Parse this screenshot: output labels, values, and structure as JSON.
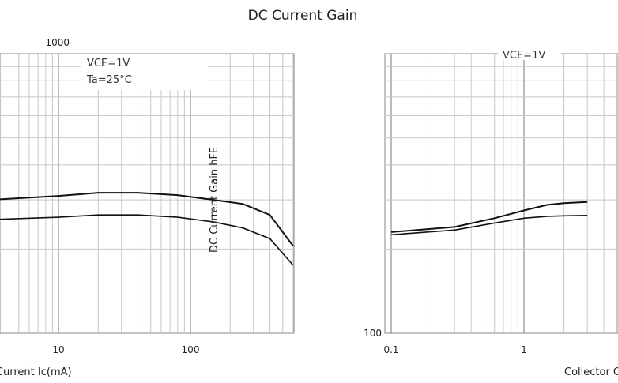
{
  "chart_data": [
    {
      "type": "line",
      "title": "DC Current Gain",
      "xlabel": "Collector Current   Ic(mA)",
      "ylabel": "DC Current Gain  hFE",
      "x_scale": "log",
      "y_scale": "log",
      "xlim": [
        3,
        600
      ],
      "ylim": [
        100,
        1000
      ],
      "x_ticks": [
        {
          "v": 10,
          "label": "10"
        },
        {
          "v": 100,
          "label": "100"
        }
      ],
      "y_ticks": [
        {
          "v": 1000,
          "label": "1000"
        }
      ],
      "annotations": [
        "VCE=1V",
        "Ta=25°C"
      ],
      "series": [
        {
          "x": [
            3,
            10,
            20,
            40,
            80,
            150,
            250,
            400,
            600
          ],
          "y": [
            300,
            310,
            318,
            318,
            312,
            300,
            290,
            265,
            205
          ]
        },
        {
          "x": [
            3,
            10,
            20,
            40,
            80,
            150,
            250,
            400,
            600
          ],
          "y": [
            255,
            260,
            265,
            265,
            260,
            250,
            238,
            218,
            175
          ]
        }
      ]
    },
    {
      "type": "line",
      "title": "",
      "xlabel": "Collector Current",
      "ylabel": "",
      "x_scale": "log",
      "y_scale": "log",
      "xlim": [
        0.1,
        3
      ],
      "ylim": [
        100,
        1000
      ],
      "x_ticks": [
        {
          "v": 0.1,
          "label": "0.1"
        },
        {
          "v": 1,
          "label": "1"
        }
      ],
      "y_ticks": [
        {
          "v": 100,
          "label": "100"
        }
      ],
      "annotations": [
        "VCE=1V"
      ],
      "series": [
        {
          "x": [
            0.1,
            0.3,
            0.6,
            1,
            1.5,
            2,
            3
          ],
          "y": [
            230,
            240,
            258,
            275,
            288,
            292,
            295
          ]
        },
        {
          "x": [
            0.1,
            0.3,
            0.6,
            1,
            1.5,
            2,
            3
          ],
          "y": [
            225,
            234,
            248,
            258,
            262,
            263,
            264
          ]
        }
      ]
    }
  ]
}
